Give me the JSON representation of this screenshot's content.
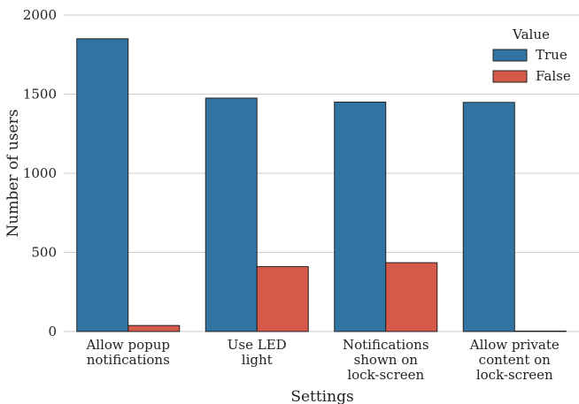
{
  "chart_data": {
    "type": "bar",
    "categories": [
      [
        "Allow popup",
        "notifications"
      ],
      [
        "Use LED",
        "light"
      ],
      [
        "Notifications",
        "shown on",
        "lock-screen"
      ],
      [
        "Allow private",
        "content on",
        "lock-screen"
      ]
    ],
    "series": [
      {
        "name": "True",
        "color": "#3274a1",
        "values": [
          1850,
          1475,
          1450,
          1448
        ]
      },
      {
        "name": "False",
        "color": "#d65a4a",
        "values": [
          38,
          410,
          435,
          3
        ]
      }
    ],
    "title": "",
    "xlabel": "Settings",
    "ylabel": "Number of users",
    "ylim": [
      0,
      2000
    ],
    "yticks": [
      0,
      500,
      1000,
      1500,
      2000
    ],
    "grid": true,
    "legend": {
      "title": "Value",
      "placement": "top-right"
    }
  }
}
